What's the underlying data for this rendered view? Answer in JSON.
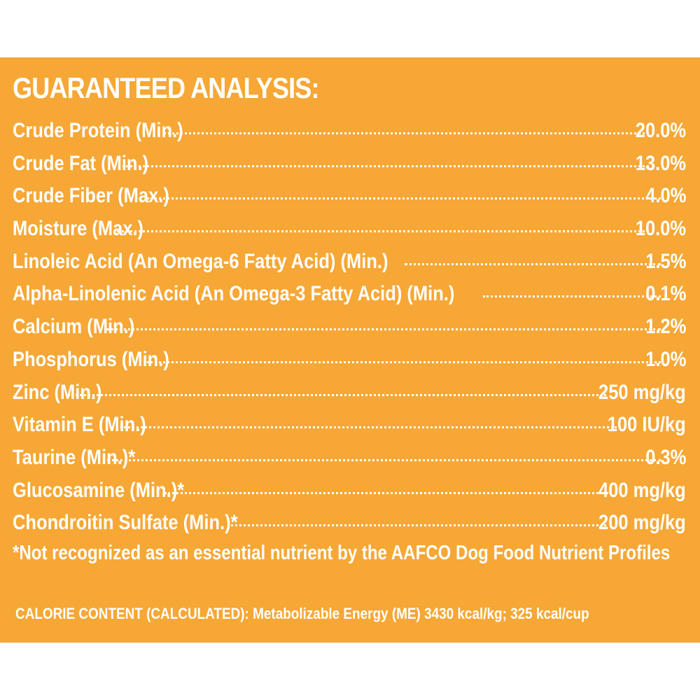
{
  "title": "GUARANTEED ANALYSIS:",
  "rows": [
    {
      "label": "Crude Protein (Min.)",
      "value": "20.0%"
    },
    {
      "label": "Crude Fat (Min.)",
      "value": "13.0%"
    },
    {
      "label": "Crude Fiber (Max.)",
      "value": "4.0%"
    },
    {
      "label": "Moisture (Max.)",
      "value": "10.0%"
    },
    {
      "label": "Linoleic Acid (An Omega-6 Fatty Acid) (Min.)",
      "value": "1.5%"
    },
    {
      "label": "Alpha-Linolenic Acid (An Omega-3 Fatty Acid) (Min.)",
      "value": "0.1%"
    },
    {
      "label": "Calcium (Min.)",
      "value": "1.2%"
    },
    {
      "label": "Phosphorus (Min.)",
      "value": "1.0%"
    },
    {
      "label": "Zinc (Min.)",
      "value": "250 mg/kg"
    },
    {
      "label": "Vitamin E (Min.)",
      "value": "100 IU/kg"
    },
    {
      "label": "Taurine (Min.)*",
      "value": "0.3%"
    },
    {
      "label": "Glucosamine (Min.)*",
      "value": "400 mg/kg"
    },
    {
      "label": "Chondroitin Sulfate (Min.)*",
      "value": "200 mg/kg"
    }
  ],
  "footnote": "*Not recognized as an essential nutrient by the AAFCO Dog Food Nutrient Profiles",
  "calorie_content": "CALORIE CONTENT (CALCULATED): Metabolizable Energy (ME) 3430 kcal/kg; 325 kcal/cup",
  "colors": {
    "panel_background": "#f6a735",
    "text": "#ffffff",
    "page_background": "#ffffff"
  }
}
